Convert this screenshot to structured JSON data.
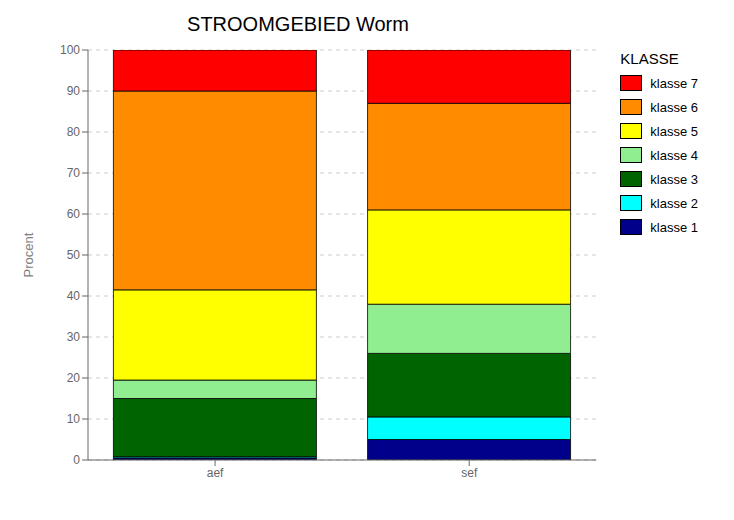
{
  "chart_data": {
    "type": "bar",
    "stacked": true,
    "title": "STROOMGEBIED Worm",
    "ylabel": "Procent",
    "categories": [
      "aef",
      "sef"
    ],
    "series": [
      {
        "name": "klasse 1",
        "color": "#00008B",
        "values": [
          0.5,
          5.0
        ]
      },
      {
        "name": "klasse 2",
        "color": "#00FFFF",
        "values": [
          0.3,
          5.5
        ]
      },
      {
        "name": "klasse 3",
        "color": "#006400",
        "values": [
          14.2,
          15.5
        ]
      },
      {
        "name": "klasse 4",
        "color": "#90EE90",
        "values": [
          4.5,
          12.0
        ]
      },
      {
        "name": "klasse 5",
        "color": "#FFFF00",
        "values": [
          22.0,
          23.0
        ]
      },
      {
        "name": "klasse 6",
        "color": "#FF8C00",
        "values": [
          48.5,
          26.0
        ]
      },
      {
        "name": "klasse 7",
        "color": "#FF0000",
        "values": [
          10.0,
          13.0
        ]
      }
    ],
    "ylim": [
      0,
      100
    ],
    "yticks": [
      0,
      10,
      20,
      30,
      40,
      50,
      60,
      70,
      80,
      90,
      100
    ],
    "grid": true,
    "legend": "right",
    "legend_title": "KLASSE"
  }
}
